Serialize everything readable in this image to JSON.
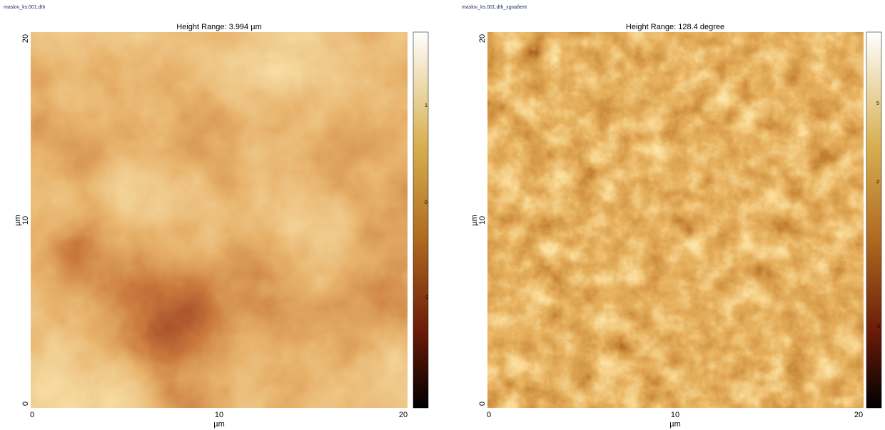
{
  "panels": [
    {
      "filename": "maslov_ks.001.dth",
      "title": "Height Range: 3.994 µm",
      "x_ticks": [
        "0",
        "10",
        "20"
      ],
      "x_label": "µm",
      "y_ticks": [
        "20",
        "10",
        "0"
      ],
      "y_label": "µm",
      "colorbar_ticks": [
        "1",
        "0",
        "-1",
        "-2"
      ]
    },
    {
      "filename": "maslov_ks.001.dth_xgradient",
      "title": "Height Range: 128.4 degree",
      "x_ticks": [
        "0",
        "10",
        "20"
      ],
      "x_label": "µm",
      "y_ticks": [
        "20",
        "10",
        "0"
      ],
      "y_label": "µm",
      "colorbar_ticks": [
        "5",
        "2",
        "-2",
        "-5"
      ]
    }
  ]
}
